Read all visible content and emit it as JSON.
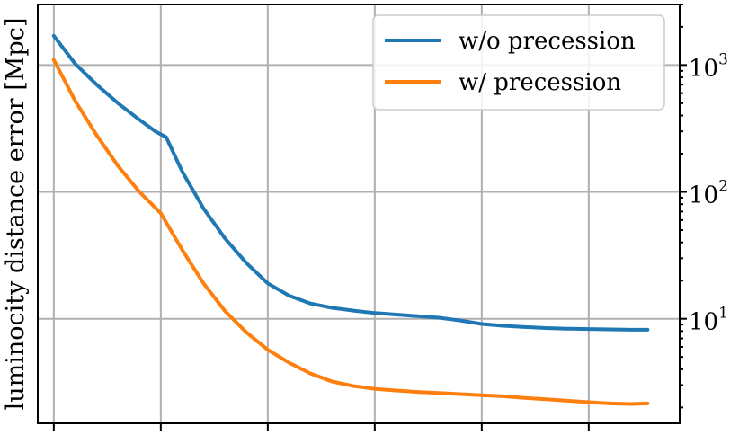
{
  "chart_data": {
    "type": "line",
    "ylabel": "luminocity distance error [Mpc]",
    "yscale": "log",
    "ylim": [
      1.5,
      3000
    ],
    "xlim": [
      -0.15,
      5.85
    ],
    "grid": true,
    "legend_placement": "top-right",
    "y_ticks": [
      {
        "value": 10,
        "base": "10",
        "exp": "1"
      },
      {
        "value": 100,
        "base": "10",
        "exp": "2"
      },
      {
        "value": 1000,
        "base": "10",
        "exp": "3"
      }
    ],
    "x_grid": [
      0,
      1,
      2,
      3,
      4,
      5
    ],
    "series": [
      {
        "name": "w/o precession",
        "color": "#1f77b4",
        "x": [
          0,
          0.2,
          0.4,
          0.6,
          0.8,
          0.95,
          1.05,
          1.2,
          1.4,
          1.6,
          1.8,
          2.0,
          2.2,
          2.4,
          2.6,
          2.8,
          3.0,
          3.2,
          3.4,
          3.6,
          3.8,
          4.0,
          4.2,
          4.4,
          4.6,
          4.8,
          5.0,
          5.2,
          5.4,
          5.55
        ],
        "values": [
          1700,
          1020,
          700,
          500,
          370,
          300,
          270,
          145,
          74,
          43,
          27.5,
          19,
          15.2,
          13.2,
          12.2,
          11.6,
          11.1,
          10.8,
          10.5,
          10.2,
          9.7,
          9.1,
          8.8,
          8.6,
          8.45,
          8.35,
          8.3,
          8.25,
          8.2,
          8.2
        ]
      },
      {
        "name": "w/ precession",
        "color": "#ff7f0e",
        "x": [
          0,
          0.2,
          0.4,
          0.6,
          0.8,
          1.0,
          1.2,
          1.4,
          1.6,
          1.8,
          2.0,
          2.2,
          2.4,
          2.6,
          2.8,
          3.0,
          3.2,
          3.4,
          3.6,
          3.8,
          4.0,
          4.2,
          4.4,
          4.6,
          4.8,
          5.0,
          5.2,
          5.4,
          5.55
        ],
        "values": [
          1100,
          520,
          280,
          160,
          100,
          68,
          35,
          19,
          11.5,
          7.8,
          5.7,
          4.5,
          3.7,
          3.2,
          2.95,
          2.8,
          2.72,
          2.65,
          2.6,
          2.55,
          2.5,
          2.45,
          2.38,
          2.32,
          2.26,
          2.2,
          2.15,
          2.13,
          2.15
        ]
      }
    ]
  }
}
